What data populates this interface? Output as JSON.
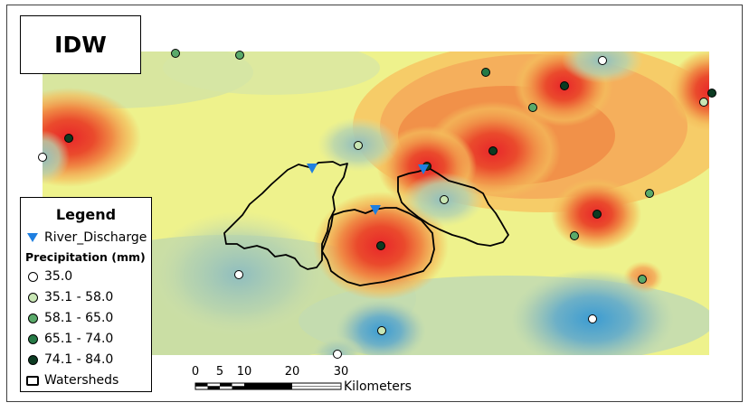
{
  "title": "IDW",
  "legend": {
    "title": "Legend",
    "river_discharge": "River_Discharge",
    "precip_title": "Precipitation (mm)",
    "classes": [
      {
        "label": "35.0",
        "color": "#ffffff"
      },
      {
        "label": "35.1 - 58.0",
        "color": "#c8e6b4"
      },
      {
        "label": "58.1 - 65.0",
        "color": "#5aaa6a"
      },
      {
        "label": "65.1 - 74.0",
        "color": "#267a46"
      },
      {
        "label": "74.1 - 84.0",
        "color": "#0c3b22"
      }
    ],
    "watersheds": "Watersheds"
  },
  "scale": {
    "ticks": [
      "0",
      "5",
      "10",
      "20",
      "30"
    ],
    "unit": "Kilometers"
  },
  "colors": {
    "ramp_low": "#3c9cd2",
    "ramp_mid": "#f0f582",
    "ramp_high": "#e8272a",
    "discharge_marker": "#1f7fe0"
  }
}
